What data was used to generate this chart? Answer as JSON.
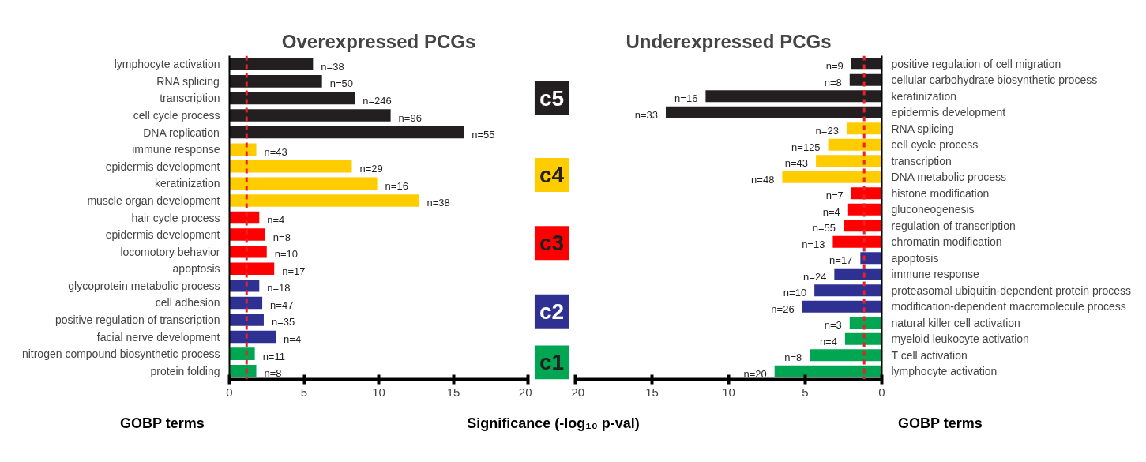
{
  "chart_data": [
    {
      "type": "bar",
      "orientation": "horizontal",
      "title": "Overexpressed PCGs",
      "xlabel": "Significance (-log₁₀ p-val)",
      "ylabel": "GOBP terms",
      "categories": [
        "lymphocyte activation",
        "RNA splicing",
        "transcription",
        "cell cycle process",
        "DNA replication",
        "immune response",
        "epidermis development",
        "keratinization",
        "muscle organ development",
        "hair cycle process",
        "epidermis development",
        "locomotory behavior",
        "apoptosis",
        "glycoprotein metabolic process",
        "cell adhesion",
        "positive regulation of transcription",
        "facial nerve development",
        "nitrogen compound biosynthetic process",
        "protein folding"
      ],
      "values": [
        5.6,
        6.2,
        8.4,
        10.8,
        15.7,
        1.8,
        8.2,
        9.9,
        12.7,
        2.0,
        2.4,
        2.5,
        3.0,
        2.0,
        2.2,
        2.3,
        3.1,
        1.7,
        1.8
      ],
      "colors": [
        "#231f20",
        "#231f20",
        "#231f20",
        "#231f20",
        "#231f20",
        "#ffcc00",
        "#ffcc00",
        "#ffcc00",
        "#ffcc00",
        "#ff0000",
        "#ff0000",
        "#ff0000",
        "#ff0000",
        "#2e3192",
        "#2e3192",
        "#2e3192",
        "#2e3192",
        "#00a651",
        "#00a651"
      ],
      "xlim": [
        0,
        20
      ],
      "xticks": [
        0,
        5,
        10,
        15,
        20
      ],
      "ref_lines": [
        {
          "axis": "x",
          "value": 1.15,
          "color": "#e8202a",
          "line_style": "dashed"
        }
      ],
      "annotations": [
        "c5",
        "c4",
        "c3",
        "c2",
        "c1",
        {
          "text": "n=38",
          "x": 5.6,
          "y": "lymphocyte activation"
        },
        {
          "text": "n=50",
          "x": 6.2,
          "y": "RNA splicing"
        },
        {
          "text": "n=246",
          "x": 8.4,
          "y": "transcription"
        },
        {
          "text": "n=96",
          "x": 10.8,
          "y": "cell cycle process"
        },
        {
          "text": "n=55",
          "x": 15.7,
          "y": "DNA replication"
        },
        {
          "text": "n=43",
          "x": 1.8,
          "y": "immune response"
        },
        {
          "text": "n=29",
          "x": 8.2,
          "y": "epidermis development"
        },
        {
          "text": "n=16",
          "x": 9.9,
          "y": "keratinization"
        },
        {
          "text": "n=38",
          "x": 12.7,
          "y": "muscle organ development"
        },
        {
          "text": "n=4",
          "x": 2.0,
          "y": "hair cycle process"
        },
        "n=8",
        {
          "text": "n=10",
          "x": 2.5,
          "y": "locomotory behavior"
        },
        {
          "text": "n=17",
          "x": 3.0,
          "y": "apoptosis"
        },
        {
          "text": "n=18",
          "x": 2.0,
          "y": "glycoprotein metabolic process"
        },
        {
          "text": "n=47",
          "x": 2.2,
          "y": "cell adhesion"
        },
        {
          "text": "n=35",
          "x": 2.3,
          "y": "positive regulation of transcription"
        },
        {
          "text": "n=4",
          "x": 3.1,
          "y": "facial nerve development"
        },
        {
          "text": "n=11",
          "x": 1.7,
          "y": "nitrogen compound biosynthetic process"
        },
        {
          "text": "n=8",
          "x": 1.8,
          "y": "protein folding"
        }
      ]
    },
    {
      "type": "bar",
      "orientation": "horizontal",
      "title": "Underexpressed PCGs",
      "ylabel": "GOBP terms",
      "categories": [
        "positive regulation of cell migration",
        "cellular carbohydrate biosynthetic process",
        "keratinization",
        "epidermis development",
        "RNA splicing",
        "cell cycle process",
        "transcription",
        "DNA metabolic process",
        "histone modification",
        "gluconeogenesis",
        "regulation of transcription",
        "chromatin modification",
        "apoptosis",
        "immune response",
        "proteasomal ubiquitin-dependent protein process",
        "modification-dependent macromolecule process",
        "natural killer cell activation",
        "myeloid leukocyte activation",
        "T cell activation",
        "lymphocyte activation"
      ],
      "values": [
        2.0,
        2.1,
        11.5,
        14.1,
        2.3,
        3.5,
        4.3,
        6.5,
        2.0,
        2.2,
        2.5,
        3.2,
        1.4,
        3.1,
        4.4,
        5.2,
        2.1,
        2.4,
        4.7,
        7.0
      ],
      "colors": [
        "#231f20",
        "#231f20",
        "#231f20",
        "#231f20",
        "#ffcc00",
        "#ffcc00",
        "#ffcc00",
        "#ffcc00",
        "#ff0000",
        "#ff0000",
        "#ff0000",
        "#ff0000",
        "#2e3192",
        "#2e3192",
        "#2e3192",
        "#2e3192",
        "#00a651",
        "#00a651",
        "#00a651",
        "#00a651"
      ],
      "xlim": [
        20,
        0
      ],
      "xticks": [
        0,
        5,
        10,
        15,
        20
      ],
      "ref_lines": [
        {
          "axis": "x",
          "value": 1.15,
          "color": "#e8202a",
          "line_style": "dashed"
        }
      ],
      "annotations": [
        {
          "text": "n=9",
          "x": 2.0,
          "y": "positive regulation of cell migration"
        },
        {
          "text": "n=8",
          "x": 2.1,
          "y": "cellular carbohydrate biosynthetic process"
        },
        {
          "text": "n=16",
          "x": 11.5,
          "y": "keratinization"
        },
        {
          "text": "n=33",
          "x": 14.1,
          "y": "epidermis development"
        },
        {
          "text": "n=23",
          "x": 2.3,
          "y": "RNA splicing"
        },
        {
          "text": "n=125",
          "x": 3.5,
          "y": "cell cycle process"
        },
        {
          "text": "n=43",
          "x": 4.3,
          "y": "transcription"
        },
        {
          "text": "n=48",
          "x": 6.5,
          "y": "DNA metabolic process"
        },
        {
          "text": "n=7",
          "x": 2.0,
          "y": "histone modification"
        },
        {
          "text": "n=4",
          "x": 2.2,
          "y": "gluconeogenesis"
        },
        {
          "text": "n=55",
          "x": 2.5,
          "y": "regulation of transcription"
        },
        {
          "text": "n=13",
          "x": 3.2,
          "y": "chromatin modification"
        },
        {
          "text": "n=17",
          "x": 1.4,
          "y": "apoptosis"
        },
        {
          "text": "n=24",
          "x": 3.1,
          "y": "immune response"
        },
        {
          "text": "n=10",
          "x": 4.4,
          "y": "proteasomal ubiquitin-dependent protein process"
        },
        {
          "text": "n=26",
          "x": 5.2,
          "y": "modification-dependent macromolecule process"
        },
        {
          "text": "n=3",
          "x": 2.1,
          "y": "natural killer cell activation"
        },
        {
          "text": "n=4",
          "x": 2.4,
          "y": "myeloid leukocyte activation"
        },
        {
          "text": "n=8",
          "x": 4.7,
          "y": "T cell activation"
        },
        {
          "text": "n=20",
          "x": 7.0,
          "y": "lymphocyte activation"
        }
      ]
    }
  ]
}
